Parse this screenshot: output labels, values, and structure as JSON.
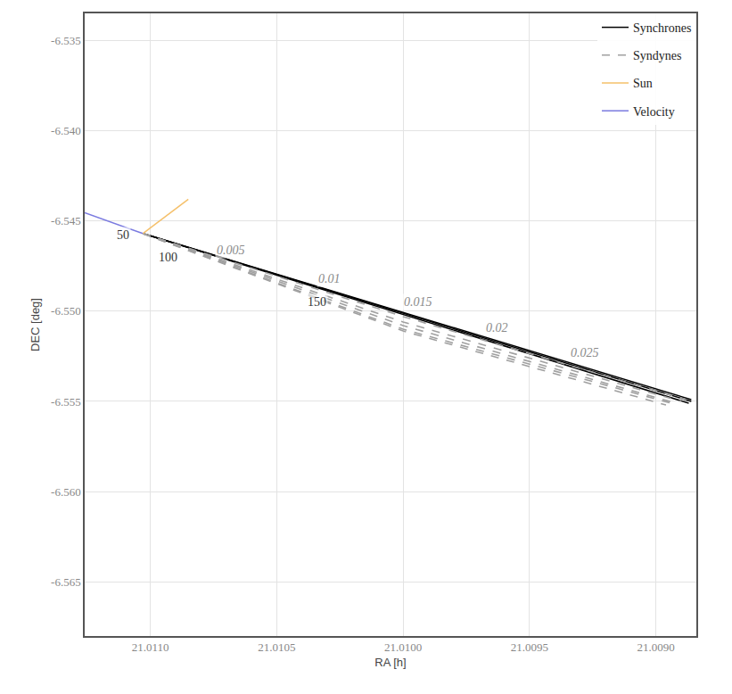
{
  "chart_data": {
    "type": "line",
    "xlabel": "RA [h]",
    "ylabel": "DEC [deg]",
    "xlim": [
      21.01126,
      21.00884
    ],
    "xticks": [
      {
        "value": 21.011,
        "label": "21.0110"
      },
      {
        "value": 21.0105,
        "label": "21.0105"
      },
      {
        "value": 21.01,
        "label": "21.0100"
      },
      {
        "value": 21.0095,
        "label": "21.0095"
      },
      {
        "value": 21.009,
        "label": "21.0090"
      }
    ],
    "ylim": [
      -6.568,
      -6.5335
    ],
    "yticks": [
      -6.535,
      {
        "value": -6.54,
        "label": "-6.540"
      },
      -6.545,
      {
        "value": -6.55,
        "label": "-6.550"
      },
      -6.555,
      {
        "value": -6.56,
        "label": "-6.560"
      },
      -6.565
    ],
    "grid": true,
    "legend": "top right",
    "series": [
      {
        "name": "Synchrones",
        "color": "#000000",
        "line_style": "solid",
        "lines": [
          {
            "label": "50",
            "x": [
              21.01103,
              21.00886
            ],
            "y": [
              -6.5457,
              -6.5549
            ],
            "label_x": 21.01111,
            "label_y": -6.5458
          },
          {
            "label": "100",
            "x": [
              21.01103,
              21.00886
            ],
            "y": [
              -6.5457,
              -6.555
            ],
            "label_x": 21.01093,
            "label_y": -6.547
          },
          {
            "label": "150",
            "x": [
              21.01103,
              21.00887
            ],
            "y": [
              -6.5457,
              -6.5551
            ],
            "label_x": 21.01034,
            "label_y": -6.5495
          }
        ]
      },
      {
        "name": "Syndynes",
        "color": "#a0a0a0",
        "line_style": "dash",
        "lines": [
          {
            "label": "0.005",
            "x": [
              21.01103,
              21.01,
              21.00888
            ],
            "y": [
              -6.5457,
              -6.5503,
              -6.5549
            ],
            "label_x": 21.01068,
            "label_y": -6.5466
          },
          {
            "label": "0.01",
            "x": [
              21.01103,
              21.01,
              21.0089
            ],
            "y": [
              -6.5457,
              -6.5506,
              -6.555
            ],
            "label_x": 21.01029,
            "label_y": -6.5482
          },
          {
            "label": "0.015",
            "x": [
              21.01103,
              21.01,
              21.00892
            ],
            "y": [
              -6.5457,
              -6.5508,
              -6.5551
            ],
            "label_x": 21.00994,
            "label_y": -6.5495
          },
          {
            "label": "0.02",
            "x": [
              21.01103,
              21.01,
              21.00894
            ],
            "y": [
              -6.5457,
              -6.551,
              -6.5551
            ],
            "label_x": 21.00963,
            "label_y": -6.5509
          },
          {
            "label": "0.025",
            "x": [
              21.01103,
              21.01,
              21.00896
            ],
            "y": [
              -6.5457,
              -6.5511,
              -6.5552
            ],
            "label_x": 21.00928,
            "label_y": -6.5523
          }
        ]
      },
      {
        "name": "Sun",
        "color": "#f5c06a",
        "line_style": "solid",
        "lines": [
          {
            "x": [
              21.01103,
              21.01085
            ],
            "y": [
              -6.5457,
              -6.5438
            ]
          }
        ]
      },
      {
        "name": "Velocity",
        "color": "#7b7be0",
        "line_style": "solid",
        "lines": [
          {
            "x": [
              21.01103,
              21.01126
            ],
            "y": [
              -6.5457,
              -6.54455
            ]
          }
        ]
      }
    ]
  }
}
